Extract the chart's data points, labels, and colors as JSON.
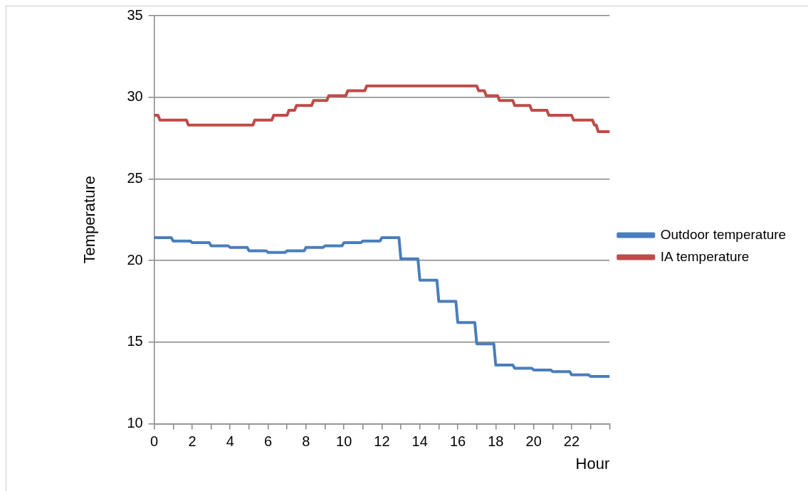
{
  "chart_data": {
    "type": "line",
    "xlabel": "Hour",
    "ylabel": "Temperature",
    "xlim": [
      0,
      24
    ],
    "ylim": [
      10,
      35
    ],
    "xticks": [
      0,
      {
        "value": 1,
        "label": null
      },
      2,
      {
        "value": 3,
        "label": null
      },
      4,
      {
        "value": 5,
        "label": null
      },
      6,
      {
        "value": 7,
        "label": null
      },
      8,
      {
        "value": 9,
        "label": null
      },
      10,
      {
        "value": 11,
        "label": null
      },
      12,
      {
        "value": 13,
        "label": null
      },
      14,
      {
        "value": 15,
        "label": null
      },
      16,
      {
        "value": 17,
        "label": null
      },
      18,
      {
        "value": 19,
        "label": null
      },
      20,
      {
        "value": 21,
        "label": null
      },
      22,
      {
        "value": 23,
        "label": null
      },
      {
        "value": 24,
        "label": null
      }
    ],
    "yticks": [
      10,
      15,
      20,
      25,
      30,
      35
    ],
    "grid": "y",
    "legend": "right",
    "marker": "none",
    "line_style": "solid",
    "series": [
      {
        "name": "Outdoor temperature",
        "color": "#4a7ebb",
        "x": [
          0,
          0.9,
          1,
          1.9,
          2,
          2.9,
          3,
          3.9,
          4,
          4.9,
          5,
          5.9,
          6,
          6.9,
          7,
          7.9,
          8,
          8.9,
          9,
          9.9,
          10,
          10.9,
          11,
          11.9,
          12,
          12.9,
          13,
          13.9,
          14,
          14.9,
          15,
          15.9,
          16,
          16.9,
          17,
          17.9,
          18,
          18.9,
          19,
          19.9,
          20,
          20.9,
          21,
          21.9,
          22,
          22.9,
          23,
          24
        ],
        "values": [
          21.4,
          21.4,
          21.2,
          21.2,
          21.1,
          21.1,
          20.9,
          20.9,
          20.8,
          20.8,
          20.6,
          20.6,
          20.5,
          20.5,
          20.6,
          20.6,
          20.8,
          20.8,
          20.9,
          20.9,
          21.1,
          21.1,
          21.2,
          21.2,
          21.4,
          21.4,
          20.1,
          20.1,
          18.8,
          18.8,
          17.5,
          17.5,
          16.2,
          16.2,
          14.9,
          14.9,
          13.6,
          13.6,
          13.4,
          13.4,
          13.3,
          13.3,
          13.2,
          13.2,
          13.0,
          13.0,
          12.9,
          12.9
        ]
      },
      {
        "name": "IA temperature",
        "color": "#be4b48",
        "x": [
          0,
          0.2,
          0.3,
          1.7,
          1.8,
          5.2,
          5.3,
          6.2,
          6.3,
          7.0,
          7.1,
          7.4,
          7.5,
          8.3,
          8.4,
          9.1,
          9.2,
          10.1,
          10.2,
          11.1,
          11.2,
          17.0,
          17.1,
          17.4,
          17.5,
          18.1,
          18.2,
          18.9,
          19.0,
          19.8,
          19.9,
          20.7,
          20.8,
          22.0,
          22.1,
          23.1,
          23.2,
          23.3,
          23.4,
          24
        ],
        "values": [
          28.9,
          28.9,
          28.6,
          28.6,
          28.3,
          28.3,
          28.6,
          28.6,
          28.9,
          28.9,
          29.2,
          29.2,
          29.5,
          29.5,
          29.8,
          29.8,
          30.1,
          30.1,
          30.4,
          30.4,
          30.7,
          30.7,
          30.4,
          30.4,
          30.1,
          30.1,
          29.8,
          29.8,
          29.5,
          29.5,
          29.2,
          29.2,
          28.9,
          28.9,
          28.6,
          28.6,
          28.3,
          28.3,
          27.9,
          27.9
        ]
      }
    ]
  }
}
